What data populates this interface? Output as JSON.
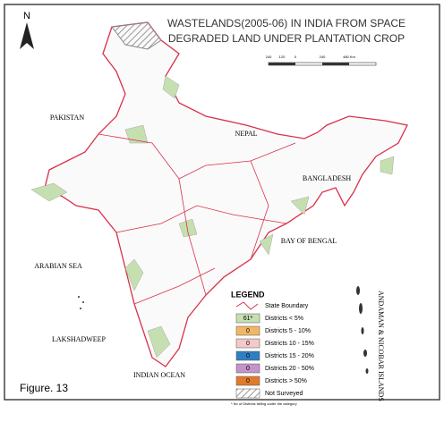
{
  "north": "N",
  "title": {
    "line1": "WASTELANDS(2005-06) IN INDIA FROM SPACE",
    "line2": "DEGRADED LAND UNDER PLANTATION CROP"
  },
  "scale": [
    "240",
    "120",
    "0",
    "240",
    "480 Km"
  ],
  "labels": {
    "pakistan": "PAKISTAN",
    "nepal": "NEPAL",
    "bangladesh": "BANGLADESH",
    "bay": "BAY OF BENGAL",
    "arabian": "ARABIAN SEA",
    "lakshadweep": "LAKSHADWEEP",
    "indian_ocean": "INDIAN OCEAN",
    "andaman": "ANDAMAN & NICOBAR ISLANDS"
  },
  "legend": {
    "title": "LEGEND",
    "boundary": "State Boundary",
    "rows": [
      {
        "count": "61*",
        "label": "Districts < 5%",
        "color": "#c6dfb0"
      },
      {
        "count": "0",
        "label": "Districts 5 - 10%",
        "color": "#f2b765"
      },
      {
        "count": "0",
        "label": "Districts 10 - 15%",
        "color": "#f3c9c9"
      },
      {
        "count": "0",
        "label": "Districts 15 - 20%",
        "color": "#2f7fc2"
      },
      {
        "count": "0",
        "label": "Districts 20 - 50%",
        "color": "#c493c9"
      },
      {
        "count": "0",
        "label": "Districts > 50%",
        "color": "#e07b2b"
      }
    ],
    "not_surveyed": "Not Surveyed",
    "footnote": "* No of Districts falling under the category"
  },
  "figure": "Figure. 13"
}
